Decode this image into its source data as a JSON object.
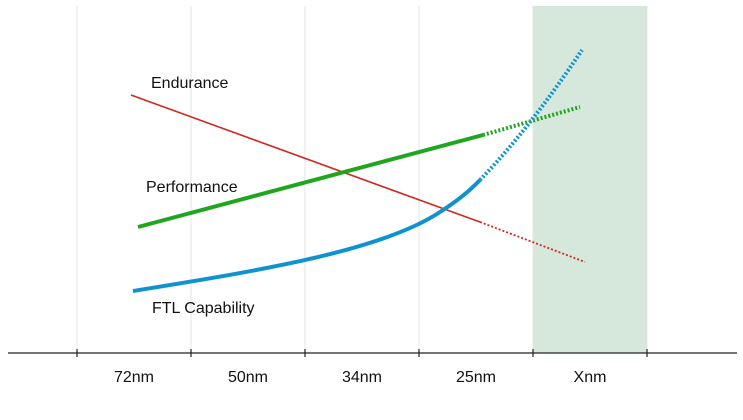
{
  "series_labels": [
    "Endurance",
    "Performance",
    "FTL Capability"
  ],
  "axis": {
    "categories": [
      "72nm",
      "50nm",
      "34nm",
      "25nm",
      "Xnm"
    ]
  }
}
